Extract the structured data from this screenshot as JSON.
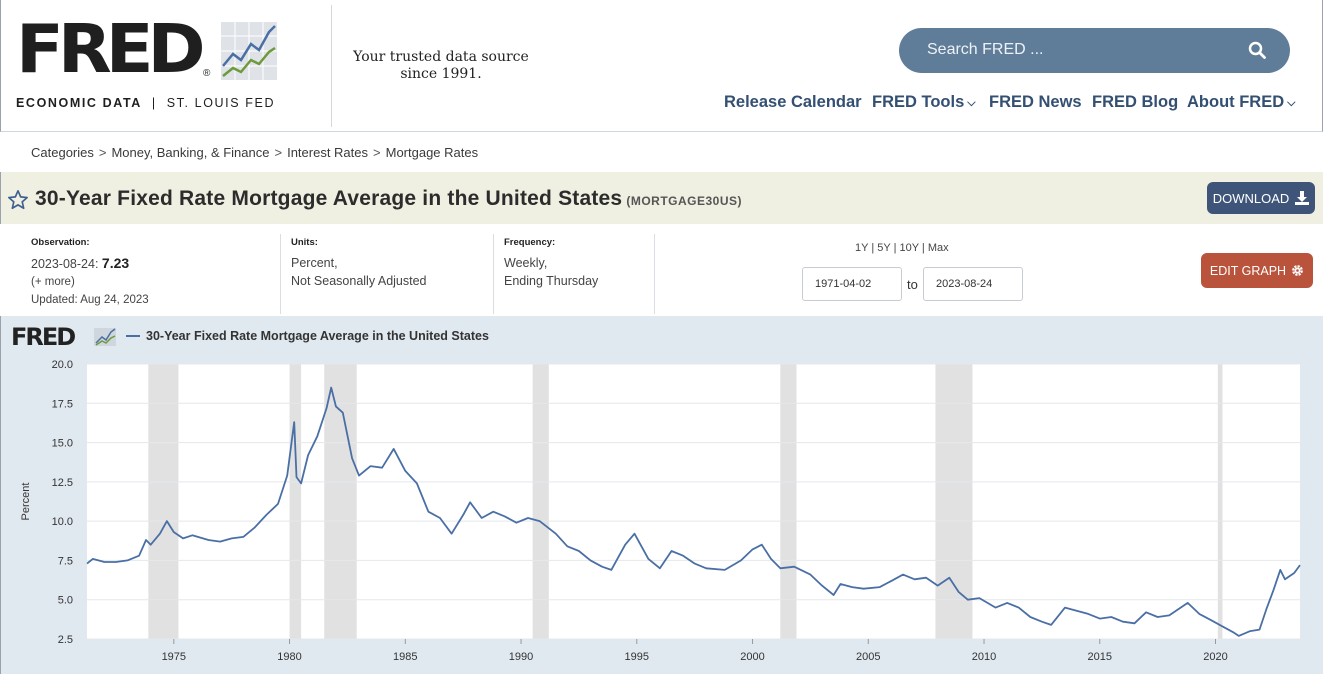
{
  "header": {
    "logo_text": "FRED",
    "logo_sub_left": "ECONOMIC DATA",
    "logo_sub_right": "ST. LOUIS FED",
    "tagline_line1": "Your trusted data source",
    "tagline_line2": "since 1991.",
    "search_placeholder": "Search FRED ...",
    "nav": [
      "Release Calendar",
      "FRED Tools",
      "FRED News",
      "FRED Blog",
      "About FRED"
    ]
  },
  "breadcrumb": [
    "Categories",
    "Money, Banking, & Finance",
    "Interest Rates",
    "Mortgage Rates"
  ],
  "series": {
    "title": "30-Year Fixed Rate Mortgage Average in the United States",
    "id": "(MORTGAGE30US)",
    "download_label": "DOWNLOAD",
    "edit_label": "EDIT GRAPH"
  },
  "meta": {
    "observation_label": "Observation:",
    "observation_date": "2023-08-24:",
    "observation_value": "7.23",
    "more": "(+ more)",
    "updated": "Updated: Aug 24, 2023",
    "units_label": "Units:",
    "units_line1": "Percent,",
    "units_line2": "Not Seasonally Adjusted",
    "frequency_label": "Frequency:",
    "frequency_line1": "Weekly,",
    "frequency_line2": "Ending Thursday",
    "ranges": [
      "1Y",
      "5Y",
      "10Y",
      "Max"
    ],
    "start_date": "1971-04-02",
    "to": "to",
    "end_date": "2023-08-24"
  },
  "colors": {
    "line": "#4a6fa5",
    "recession": "#e1e1e1",
    "accent": "#5f7d99",
    "download": "#3e5579",
    "edit": "#b9533b"
  },
  "chart_data": {
    "type": "line",
    "logo": "FRED",
    "legend": "30-Year Fixed Rate Mortgage Average in the United States",
    "ylabel": "Percent",
    "ylim": [
      2.5,
      20.0
    ],
    "yticks": [
      "2.5",
      "5.0",
      "7.5",
      "10.0",
      "12.5",
      "15.0",
      "17.5",
      "20.0"
    ],
    "xlim": [
      1971.25,
      2023.65
    ],
    "xticks": [
      "1975",
      "1980",
      "1985",
      "1990",
      "1995",
      "2000",
      "2005",
      "2010",
      "2015",
      "2020"
    ],
    "recessions": [
      [
        1973.9,
        1975.2
      ],
      [
        1980.0,
        1980.5
      ],
      [
        1981.5,
        1982.9
      ],
      [
        1990.5,
        1991.2
      ],
      [
        2001.2,
        2001.9
      ],
      [
        2007.9,
        2009.5
      ],
      [
        2020.1,
        2020.3
      ]
    ],
    "x": [
      1971.25,
      1971.5,
      1972.0,
      1972.5,
      1973.0,
      1973.5,
      1973.8,
      1974.0,
      1974.4,
      1974.7,
      1975.0,
      1975.4,
      1975.8,
      1976.5,
      1977.0,
      1977.5,
      1978.0,
      1978.5,
      1979.0,
      1979.5,
      1979.9,
      1980.2,
      1980.3,
      1980.5,
      1980.8,
      1981.2,
      1981.6,
      1981.8,
      1982.0,
      1982.3,
      1982.7,
      1983.0,
      1983.5,
      1984.0,
      1984.5,
      1985.0,
      1985.5,
      1986.0,
      1986.5,
      1987.0,
      1987.5,
      1987.8,
      1988.3,
      1988.8,
      1989.3,
      1989.8,
      1990.3,
      1990.8,
      1991.5,
      1992.0,
      1992.5,
      1993.0,
      1993.5,
      1993.9,
      1994.5,
      1994.9,
      1995.5,
      1996.0,
      1996.5,
      1997.0,
      1997.5,
      1998.0,
      1998.8,
      1999.5,
      2000.0,
      2000.4,
      2000.8,
      2001.2,
      2001.8,
      2002.5,
      2003.0,
      2003.5,
      2003.8,
      2004.3,
      2004.8,
      2005.5,
      2006.0,
      2006.5,
      2007.0,
      2007.5,
      2008.0,
      2008.5,
      2008.9,
      2009.3,
      2009.8,
      2010.5,
      2011.0,
      2011.5,
      2012.0,
      2012.5,
      2012.9,
      2013.5,
      2014.0,
      2014.5,
      2015.0,
      2015.5,
      2016.0,
      2016.5,
      2017.0,
      2017.5,
      2018.0,
      2018.8,
      2019.3,
      2019.8,
      2020.3,
      2020.8,
      2021.0,
      2021.5,
      2021.9,
      2022.2,
      2022.5,
      2022.8,
      2023.0,
      2023.2,
      2023.4,
      2023.65
    ],
    "y": [
      7.3,
      7.6,
      7.4,
      7.4,
      7.5,
      7.8,
      8.8,
      8.5,
      9.2,
      10.0,
      9.3,
      8.9,
      9.1,
      8.8,
      8.7,
      8.9,
      9.0,
      9.6,
      10.4,
      11.1,
      12.9,
      16.3,
      12.8,
      12.4,
      14.2,
      15.4,
      17.2,
      18.5,
      17.3,
      16.9,
      14.0,
      12.9,
      13.5,
      13.4,
      14.6,
      13.2,
      12.4,
      10.6,
      10.2,
      9.2,
      10.4,
      11.2,
      10.2,
      10.6,
      10.3,
      9.9,
      10.2,
      10.0,
      9.2,
      8.4,
      8.1,
      7.5,
      7.1,
      6.9,
      8.5,
      9.2,
      7.6,
      7.0,
      8.1,
      7.8,
      7.3,
      7.0,
      6.9,
      7.5,
      8.2,
      8.5,
      7.6,
      7.0,
      7.1,
      6.6,
      5.9,
      5.3,
      6.0,
      5.8,
      5.7,
      5.8,
      6.2,
      6.6,
      6.3,
      6.4,
      5.9,
      6.4,
      5.5,
      5.0,
      5.1,
      4.5,
      4.8,
      4.5,
      3.9,
      3.6,
      3.4,
      4.5,
      4.3,
      4.1,
      3.8,
      3.9,
      3.6,
      3.5,
      4.2,
      3.9,
      4.0,
      4.8,
      4.1,
      3.7,
      3.3,
      2.9,
      2.7,
      3.0,
      3.1,
      4.4,
      5.6,
      6.9,
      6.3,
      6.5,
      6.7,
      7.2
    ],
    "date_placeholder": ""
  }
}
